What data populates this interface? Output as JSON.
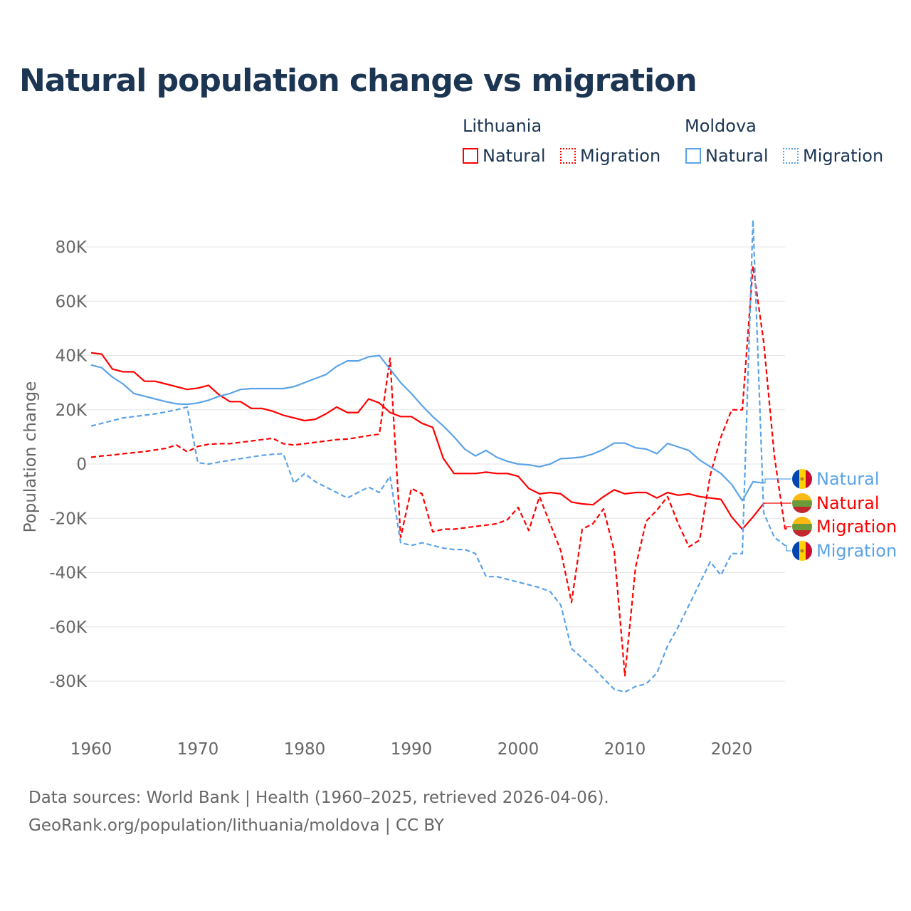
{
  "title": "Natural population change vs migration",
  "legend": {
    "groups": [
      {
        "name": "Lithuania",
        "items": [
          {
            "label": "Natural",
            "style": "solid"
          },
          {
            "label": "Migration",
            "style": "dotted"
          }
        ],
        "color": "#ff0000"
      },
      {
        "name": "Moldova",
        "items": [
          {
            "label": "Natural",
            "style": "solid"
          },
          {
            "label": "Migration",
            "style": "dotted"
          }
        ],
        "color": "#5ba3e8"
      }
    ]
  },
  "source": {
    "line1": "Data sources: World Bank | Health (1960–2025, retrieved 2026-04-06).",
    "line2": "GeoRank.org/population/lithuania/moldova | CC BY"
  },
  "chart_data": {
    "type": "line",
    "title": "Natural population change vs migration",
    "ylabel": "Population change",
    "xlabel": "",
    "xlim": [
      1960,
      2025
    ],
    "ylim": [
      -95000,
      92000
    ],
    "x_ticks": [
      1960,
      1970,
      1980,
      1990,
      2000,
      2010,
      2020
    ],
    "y_ticks": [
      {
        "v": 80000,
        "label": "80K"
      },
      {
        "v": 60000,
        "label": "60K"
      },
      {
        "v": 40000,
        "label": "40K"
      },
      {
        "v": 20000,
        "label": "20K"
      },
      {
        "v": 0,
        "label": "0"
      },
      {
        "v": -20000,
        "label": "-20K"
      },
      {
        "v": -40000,
        "label": "-40K"
      },
      {
        "v": -60000,
        "label": "-60K"
      },
      {
        "v": -80000,
        "label": "-80K"
      }
    ],
    "grid": true,
    "series": [
      {
        "name": "Lithuania Natural",
        "end_label": "Natural",
        "country": "Lithuania",
        "color": "#ff0000",
        "dash": false,
        "start": 1960,
        "label_slot": 1,
        "values": [
          41,
          40.5,
          35,
          34,
          34,
          30.5,
          30.5,
          29.5,
          28.5,
          27.5,
          28,
          29,
          25.5,
          23,
          23,
          20.5,
          20.5,
          19.5,
          18,
          17,
          16,
          16.5,
          18.5,
          21,
          19,
          19,
          24,
          22.5,
          19,
          17.5,
          17.5,
          15,
          13.5,
          2,
          -3.5,
          -3.5,
          -3.5,
          -3,
          -3.5,
          -3.5,
          -4.5,
          -9,
          -11,
          -10.5,
          -11,
          -14,
          -14.7,
          -15,
          -12,
          -9.5,
          -11,
          -10.5,
          -10.5,
          -12.5,
          -10.5,
          -11.5,
          -11,
          -12,
          -12.5,
          -13,
          -19.5,
          -24,
          -19.5,
          -14.5
        ]
      },
      {
        "name": "Lithuania Migration",
        "end_label": "Migration",
        "country": "Lithuania",
        "color": "#ff0000",
        "dash": true,
        "start": 1960,
        "label_slot": 2,
        "values": [
          2.5,
          3,
          3.3,
          3.8,
          4.2,
          4.6,
          5.2,
          5.8,
          7,
          4.5,
          6.5,
          7.3,
          7.5,
          7.5,
          8,
          8.5,
          9,
          9.5,
          7.5,
          7,
          7.5,
          8,
          8.5,
          9,
          9.2,
          9.8,
          10.5,
          11,
          39,
          -27,
          -9,
          -11,
          -25,
          -24,
          -24,
          -23.5,
          -23,
          -22.5,
          -22,
          -20.5,
          -16,
          -24.5,
          -12,
          -22,
          -32,
          -51,
          -24,
          -22,
          -16.5,
          -32,
          -78,
          -38,
          -21,
          -17,
          -12,
          -22,
          -30.5,
          -28,
          -4,
          10,
          20,
          20,
          73,
          45,
          3,
          -24
        ]
      },
      {
        "name": "Moldova Natural",
        "end_label": "Natural",
        "country": "Moldova",
        "color": "#5ba3e8",
        "dash": false,
        "start": 1960,
        "label_slot": 0,
        "values": [
          36.5,
          35.5,
          32,
          29.5,
          26,
          25,
          24,
          23,
          22.2,
          22,
          22.5,
          23.5,
          25,
          26,
          27.5,
          27.8,
          27.8,
          27.8,
          27.8,
          28.5,
          30,
          31.5,
          33,
          36,
          38,
          38,
          39.5,
          40,
          35,
          30,
          26,
          21.5,
          17.5,
          14,
          10,
          5.5,
          3,
          5,
          2.5,
          1,
          0,
          -0.3,
          -1,
          0,
          2,
          2.2,
          2.6,
          3.7,
          5.4,
          7.7,
          7.7,
          6,
          5.5,
          3.8,
          7.6,
          6.3,
          5,
          1.5,
          -1,
          -3.5,
          -7.5,
          -13.5,
          -6.5,
          -7
        ]
      },
      {
        "name": "Moldova Migration",
        "end_label": "Migration",
        "country": "Moldova",
        "color": "#5ba3e8",
        "dash": true,
        "start": 1960,
        "label_slot": 3,
        "values": [
          14,
          15,
          16,
          17,
          17.5,
          18,
          18.5,
          19.2,
          20,
          21,
          0.5,
          0,
          0.7,
          1.4,
          2,
          2.6,
          3.2,
          3.6,
          3.8,
          -7,
          -3.5,
          -6.5,
          -8.5,
          -10.5,
          -12.5,
          -10.5,
          -8.5,
          -10.5,
          -4.5,
          -29,
          -30,
          -29,
          -30,
          -31,
          -31.5,
          -31.5,
          -33,
          -41.5,
          -41.5,
          -42.5,
          -43.5,
          -44.5,
          -45.5,
          -47,
          -52,
          -68,
          -71.5,
          -75,
          -79,
          -83,
          -84,
          -82,
          -81,
          -77,
          -67,
          -60,
          -52,
          -44,
          -36,
          -41,
          -33,
          -33,
          90,
          -18,
          -27,
          -30
        ]
      }
    ],
    "value_unit": "thousands"
  }
}
